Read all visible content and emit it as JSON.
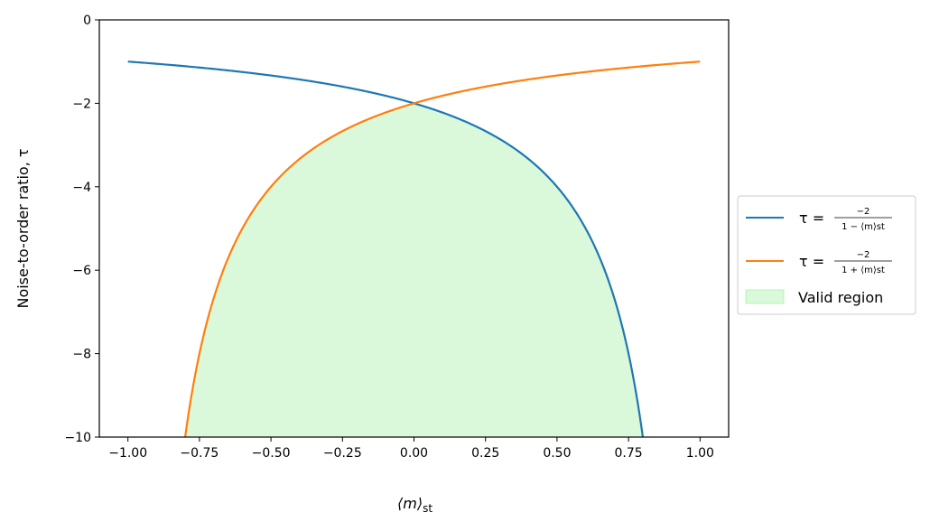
{
  "chart_data": {
    "type": "line",
    "xlabel": "⟨m⟩",
    "xlabel_sub": "st",
    "ylabel": "Noise-to-order ratio, τ",
    "xlim": [
      -1.1,
      1.1
    ],
    "ylim": [
      -10,
      0
    ],
    "xticks": [
      -1.0,
      -0.75,
      -0.5,
      -0.25,
      0.0,
      0.25,
      0.5,
      0.75,
      1.0
    ],
    "xtick_labels": [
      "−1.00",
      "−0.75",
      "−0.50",
      "−0.25",
      "0.00",
      "0.25",
      "0.50",
      "0.75",
      "1.00"
    ],
    "yticks": [
      0,
      -2,
      -4,
      -6,
      -8,
      -10
    ],
    "ytick_labels": [
      "0",
      "−2",
      "−4",
      "−6",
      "−8",
      "−10"
    ],
    "grid": false,
    "legend_position": "right, outside the plot",
    "series": [
      {
        "name_lhs": "τ =",
        "name_num": "−2",
        "name_den": "1 − ⟨m⟩st",
        "color": "#1f77b4",
        "formula": "-2/(1-m)",
        "x": [
          -1.0,
          -0.9,
          -0.8,
          -0.7,
          -0.6,
          -0.5,
          -0.4,
          -0.3,
          -0.2,
          -0.1,
          0.0,
          0.1,
          0.2,
          0.3,
          0.4,
          0.5,
          0.55,
          0.6,
          0.65,
          0.7,
          0.75,
          0.8
        ],
        "y": [
          -1.0,
          -1.053,
          -1.111,
          -1.176,
          -1.25,
          -1.333,
          -1.429,
          -1.538,
          -1.667,
          -1.818,
          -2.0,
          -2.222,
          -2.5,
          -2.857,
          -3.333,
          -4.0,
          -4.444,
          -5.0,
          -5.714,
          -6.667,
          -8.0,
          -10.0
        ]
      },
      {
        "name_lhs": "τ =",
        "name_num": "−2",
        "name_den": "1 + ⟨m⟩st",
        "color": "#ff7f0e",
        "formula": "-2/(1+m)",
        "x": [
          -0.8,
          -0.75,
          -0.7,
          -0.65,
          -0.6,
          -0.55,
          -0.5,
          -0.4,
          -0.3,
          -0.2,
          -0.1,
          0.0,
          0.1,
          0.2,
          0.3,
          0.4,
          0.5,
          0.6,
          0.7,
          0.8,
          0.9,
          1.0
        ],
        "y": [
          -10.0,
          -8.0,
          -6.667,
          -5.714,
          -5.0,
          -4.444,
          -4.0,
          -3.333,
          -2.857,
          -2.5,
          -2.222,
          -2.0,
          -1.818,
          -1.667,
          -1.538,
          -1.429,
          -1.333,
          -1.25,
          -1.176,
          -1.111,
          -1.053,
          -1.0
        ]
      }
    ],
    "fill": {
      "name": "Valid region",
      "color": "#90ee90",
      "opacity": 0.33,
      "between": "lower curve envelope and y = -10, for -0.8 ≤ m ≤ 0.8"
    }
  }
}
